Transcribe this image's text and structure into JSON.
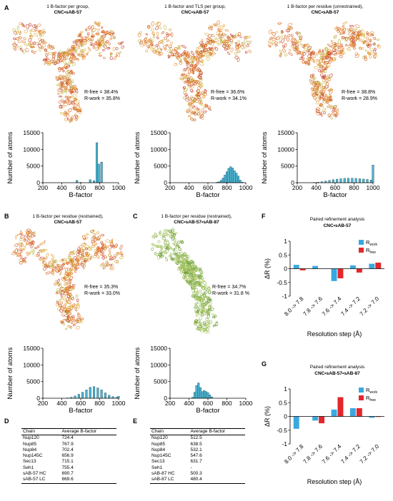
{
  "colors": {
    "bar": "#4fb3cf",
    "rwork": "#3aa8e0",
    "rfree": "#e4262b"
  },
  "panels": {
    "A": "A",
    "B": "B",
    "C": "C",
    "D": "D",
    "E": "E",
    "F": "F",
    "G": "G"
  },
  "structures": [
    {
      "title1": "1 B-factor per group,",
      "title2": "CNC•sAB-57",
      "rfree": "R-free = 38.4%",
      "rwork": "R-work = 35.8%",
      "palette": "warm"
    },
    {
      "title1": "1 B-factor and TLS per group,",
      "title2": "CNC•sAB-57",
      "rfree": "R-free = 36.6%",
      "rwork": "R-work = 34.1%",
      "palette": "warm"
    },
    {
      "title1": "1 B-factor per residue (unrestrained),",
      "title2": "CNC•sAB-57",
      "rfree": "R-free = 38.8%",
      "rwork": "R-work = 28.9%",
      "palette": "warm"
    },
    {
      "title1": "1 B-factor per residue (restrained),",
      "title2": "CNC•sAB-57",
      "rfree": "R-free = 35.3%",
      "rwork": "R-work = 33.0%",
      "palette": "warm"
    },
    {
      "title1": "1 B-factor per residue (restrained),",
      "title2": "CNC•sAB-57•sAB-87",
      "rfree": "R-free = 34.7%",
      "rwork": "R-work = 31.8 %",
      "palette": "green"
    }
  ],
  "chart_data": [
    {
      "type": "bar",
      "title": "",
      "xlabel": "B-factor",
      "ylabel": "Number of atoms",
      "xlim": [
        200,
        1000
      ],
      "ylim": [
        0,
        15000
      ],
      "xticks": [
        "200",
        "400",
        "600",
        "800",
        "1000"
      ],
      "yticks": [
        "0",
        "5000",
        "10000",
        "15000"
      ],
      "x": [
        560,
        600,
        700,
        740,
        770,
        790,
        820
      ],
      "values": [
        700,
        100,
        900,
        600,
        12000,
        5600,
        6200
      ]
    },
    {
      "type": "bar",
      "title": "",
      "xlabel": "B-factor",
      "ylabel": "Number of atoms",
      "xlim": [
        200,
        1000
      ],
      "ylim": [
        0,
        15000
      ],
      "xticks": [
        "200",
        "400",
        "600",
        "800",
        "1000"
      ],
      "yticks": [
        "0",
        "5000",
        "10000",
        "15000"
      ],
      "x": [
        700,
        720,
        740,
        760,
        780,
        800,
        820,
        840,
        860,
        880,
        900,
        920,
        940,
        960
      ],
      "values": [
        150,
        300,
        700,
        1400,
        2300,
        3300,
        4300,
        4800,
        4400,
        3600,
        2900,
        2000,
        800,
        150
      ]
    },
    {
      "type": "bar",
      "title": "",
      "xlabel": "B-factor",
      "ylabel": "Number of atoms",
      "xlim": [
        200,
        1000
      ],
      "ylim": [
        0,
        15000
      ],
      "xticks": [
        "200",
        "400",
        "600",
        "800",
        "1000"
      ],
      "yticks": [
        "0",
        "5000",
        "10000",
        "15000"
      ],
      "x": [
        380,
        420,
        460,
        500,
        540,
        580,
        620,
        660,
        700,
        740,
        780,
        820,
        860,
        900,
        940,
        980,
        1000
      ],
      "values": [
        80,
        150,
        300,
        500,
        700,
        900,
        1050,
        1200,
        1300,
        1350,
        1350,
        1300,
        1200,
        1100,
        1000,
        800,
        5300
      ]
    },
    {
      "type": "bar",
      "title": "",
      "xlabel": "B-factor",
      "ylabel": "Number of atoms",
      "xlim": [
        200,
        1000
      ],
      "ylim": [
        0,
        15000
      ],
      "xticks": [
        "200",
        "400",
        "600",
        "800",
        "1000"
      ],
      "yticks": [
        "0",
        "5000",
        "10000",
        "15000"
      ],
      "x": [
        460,
        500,
        540,
        580,
        620,
        660,
        700,
        740,
        780,
        820,
        860,
        900,
        940,
        980,
        1000
      ],
      "values": [
        100,
        300,
        700,
        1200,
        1800,
        2500,
        3300,
        3500,
        3100,
        2500,
        1600,
        900,
        500,
        300,
        600
      ]
    },
    {
      "type": "bar",
      "title": "",
      "xlabel": "B-factor",
      "ylabel": "Number of atoms",
      "xlim": [
        200,
        1000
      ],
      "ylim": [
        0,
        15000
      ],
      "xticks": [
        "200",
        "400",
        "600",
        "800",
        "1000"
      ],
      "yticks": [
        "0",
        "5000",
        "10000",
        "15000"
      ],
      "x": [
        440,
        460,
        480,
        500,
        520,
        540,
        560,
        580,
        600,
        620,
        640
      ],
      "values": [
        300,
        1800,
        3800,
        4600,
        3200,
        2000,
        2300,
        2000,
        1700,
        1000,
        400
      ]
    },
    {
      "type": "bar",
      "title": "Paired refinement analysis",
      "subtitle": "CNC•sAB-57",
      "xlabel": "Resolution step (Å)",
      "ylabel": "ΔR (%)",
      "ylim": [
        -1,
        1
      ],
      "yticks": [
        "1",
        "0.5",
        "0",
        "-0.5",
        "-1"
      ],
      "categories": [
        "8.0 -> 7.8",
        "7.8 -> 7.6",
        "7.6 -> 7.4",
        "7.4 -> 7.2",
        "7.2 -> 7.0"
      ],
      "series": [
        {
          "name": "R_work",
          "values": [
            0.14,
            0.1,
            -0.45,
            0.12,
            0.18
          ]
        },
        {
          "name": "R_free",
          "values": [
            -0.06,
            0,
            -0.35,
            -0.14,
            0.22
          ]
        }
      ],
      "legend": [
        {
          "main": "R",
          "sub": "work"
        },
        {
          "main": "R",
          "sub": "free"
        }
      ]
    },
    {
      "type": "bar",
      "title": "Paired refinement analysis",
      "subtitle": "CNC•sAB-57•sAB-87",
      "xlabel": "Resolution step (Å)",
      "ylabel": "ΔR (%)",
      "ylim": [
        -1,
        1
      ],
      "yticks": [
        "1",
        "0.5",
        "0",
        "-0.5",
        "-1"
      ],
      "categories": [
        "8.0 -> 7.8",
        "7.8 -> 7.6",
        "7.6 -> 7.4",
        "7.4 -> 7.2",
        "7.2 -> 7.0"
      ],
      "series": [
        {
          "name": "R_work",
          "values": [
            -0.45,
            -0.15,
            0.25,
            0.3,
            -0.05
          ]
        },
        {
          "name": "R_free",
          "values": [
            0,
            -0.25,
            0.7,
            0.3,
            -0.02
          ]
        }
      ],
      "legend": [
        {
          "main": "R",
          "sub": "work"
        },
        {
          "main": "R",
          "sub": "free"
        }
      ]
    }
  ],
  "tables": [
    {
      "header": [
        "Chain",
        "Average B-factor"
      ],
      "rows": [
        [
          "Nup120",
          "724.4"
        ],
        [
          "Nup85",
          "767.9"
        ],
        [
          "Nup84",
          "702.4"
        ],
        [
          "Nup145C",
          "656.9"
        ],
        [
          "Sec13",
          "715.1"
        ],
        [
          "Seh1",
          "755.4"
        ],
        [
          "sAB-57 HC",
          "690.7"
        ],
        [
          "sAB-57 LC",
          "669.6"
        ]
      ]
    },
    {
      "header": [
        "Chain",
        "Average B-factor"
      ],
      "rows": [
        [
          "Nup120",
          "512.5"
        ],
        [
          "Nup85",
          "638.5"
        ],
        [
          "Nup84",
          "532.1"
        ],
        [
          "Nup145C",
          "547.6"
        ],
        [
          "Sec13",
          "631.7"
        ],
        [
          "Seh1",
          "-"
        ],
        [
          "sAB-87 HC",
          "500.3"
        ],
        [
          "sAB-87 LC",
          "480.4"
        ]
      ]
    }
  ]
}
